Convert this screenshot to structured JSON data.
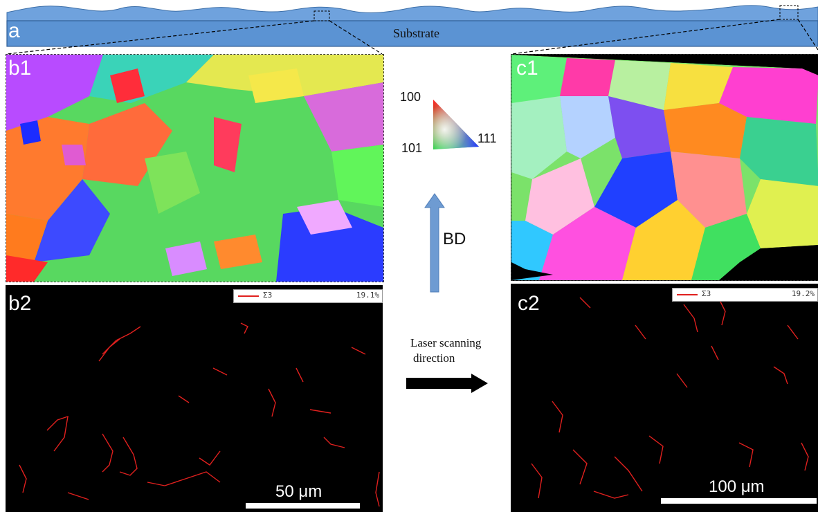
{
  "figure": {
    "panel_a": {
      "label": "a",
      "substrate_label": "Substrate"
    },
    "panel_b1": {
      "label": "b1"
    },
    "panel_b2": {
      "label": "b2",
      "legend_symbol": "Σ3",
      "legend_value": "19.1%",
      "scale_bar_label": "50 μm"
    },
    "panel_c1": {
      "label": "c1"
    },
    "panel_c2": {
      "label": "c2",
      "legend_symbol": "Σ3",
      "legend_value": "19.2%",
      "scale_bar_label": "100 μm"
    },
    "ipf_legend": {
      "top": "100",
      "left": "101",
      "right": "111"
    },
    "build_direction": {
      "label": "BD"
    },
    "laser_direction": {
      "label_line1": "Laser scanning",
      "label_line2": "direction"
    }
  },
  "colors": {
    "substrate_blue": "#5b93d3",
    "boundary_red": "#e0201e",
    "bd_arrow": "#6e9bd2"
  }
}
